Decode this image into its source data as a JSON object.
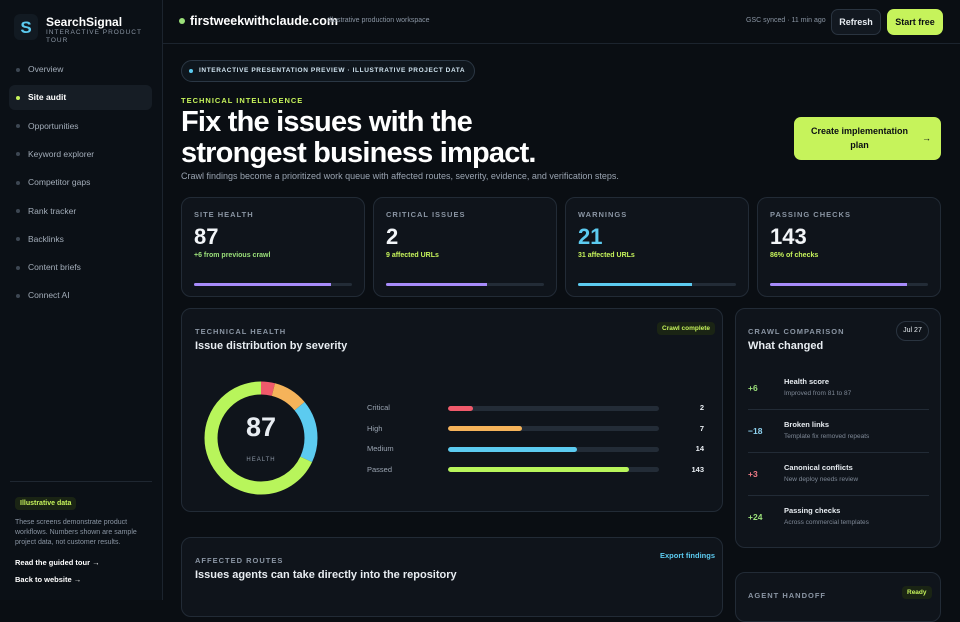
{
  "brand": {
    "name": "SearchSignal",
    "tagline": "INTERACTIVE PRODUCT TOUR"
  },
  "nav": {
    "items": [
      "Overview",
      "Site audit",
      "Opportunities",
      "Keyword explorer",
      "Competitor gaps",
      "Rank tracker",
      "Backlinks",
      "Content briefs",
      "Connect AI"
    ],
    "active": 1
  },
  "sidebar_note": {
    "badge": "Illustrative data",
    "text": "These screens demonstrate product workflows. Numbers shown are sample project data, not customer results.",
    "links": [
      "Read the guided tour →",
      "Back to website →"
    ]
  },
  "topbar": {
    "domain": "firstweekwithclaude.com",
    "subtitle": "Illustrative production workspace",
    "status": "GSC synced · 11 min ago",
    "buttons": [
      "Refresh",
      "Start free"
    ]
  },
  "hero": {
    "pill": "INTERACTIVE PRESENTATION PREVIEW · ILLUSTRATIVE PROJECT DATA",
    "eyebrow": "TECHNICAL INTELLIGENCE",
    "title": "Fix the issues with the strongest business impact.",
    "description": "Crawl findings become a prioritized work queue with affected routes, severity, evidence, and verification steps.",
    "cta": "Create implementation plan"
  },
  "stats": [
    {
      "label": "SITE HEALTH",
      "value": 87,
      "note": "+6 from previous crawl",
      "meter": 87,
      "color": "#a78bfa",
      "value_color": "#f2f5f8",
      "note_color": "#9be07a"
    },
    {
      "label": "CRITICAL ISSUES",
      "value": 2,
      "note": "9 affected URLs",
      "meter": 64,
      "color": "#a78bfa",
      "value_color": "#f2f5f8",
      "note_color": "#c6f35b"
    },
    {
      "label": "WARNINGS",
      "value": 21,
      "note": "31 affected URLs",
      "meter": 72,
      "color": "#5ccbf0",
      "value_color": "#5ccbf0",
      "note_color": "#c6f35b"
    },
    {
      "label": "PASSING CHECKS",
      "value": 143,
      "note": "86% of checks",
      "meter": 87,
      "color": "#a78bfa",
      "value_color": "#f2f5f8",
      "note_color": "#c6f35b"
    }
  ],
  "distribution": {
    "eyebrow": "TECHNICAL HEALTH",
    "title": "Issue distribution by severity",
    "badge": "Crawl complete",
    "score": 87,
    "score_label": "HEALTH",
    "rows": [
      {
        "label": "Critical",
        "count": 2,
        "meter": 12,
        "share": 4,
        "color": "#f05a6b"
      },
      {
        "label": "High",
        "count": 7,
        "meter": 35,
        "share": 10,
        "color": "#f5b35a"
      },
      {
        "label": "Medium",
        "count": 14,
        "meter": 61,
        "share": 18,
        "color": "#5ccbf0"
      },
      {
        "label": "Passed",
        "count": 143,
        "meter": 86,
        "share": 68,
        "color": "#b8f55b"
      }
    ]
  },
  "comparison": {
    "eyebrow": "CRAWL COMPARISON",
    "title": "What changed",
    "date": "Jul 27",
    "items": [
      {
        "delta": "+6",
        "title": "Health score",
        "detail": "Improved from 81 to 87",
        "color": "#9be07a"
      },
      {
        "delta": "−18",
        "title": "Broken links",
        "detail": "Template fix removed repeats",
        "color": "#8fd3f0"
      },
      {
        "delta": "+3",
        "title": "Canonical conflicts",
        "detail": "New deploy needs review",
        "color": "#f07a86"
      },
      {
        "delta": "+24",
        "title": "Passing checks",
        "detail": "Across commercial templates",
        "color": "#9be07a"
      }
    ]
  },
  "routes": {
    "eyebrow": "AFFECTED ROUTES",
    "title": "Issues agents can take directly into the repository",
    "action": "Export findings"
  },
  "handoff": {
    "eyebrow": "AGENT HANDOFF",
    "badge": "Ready"
  }
}
